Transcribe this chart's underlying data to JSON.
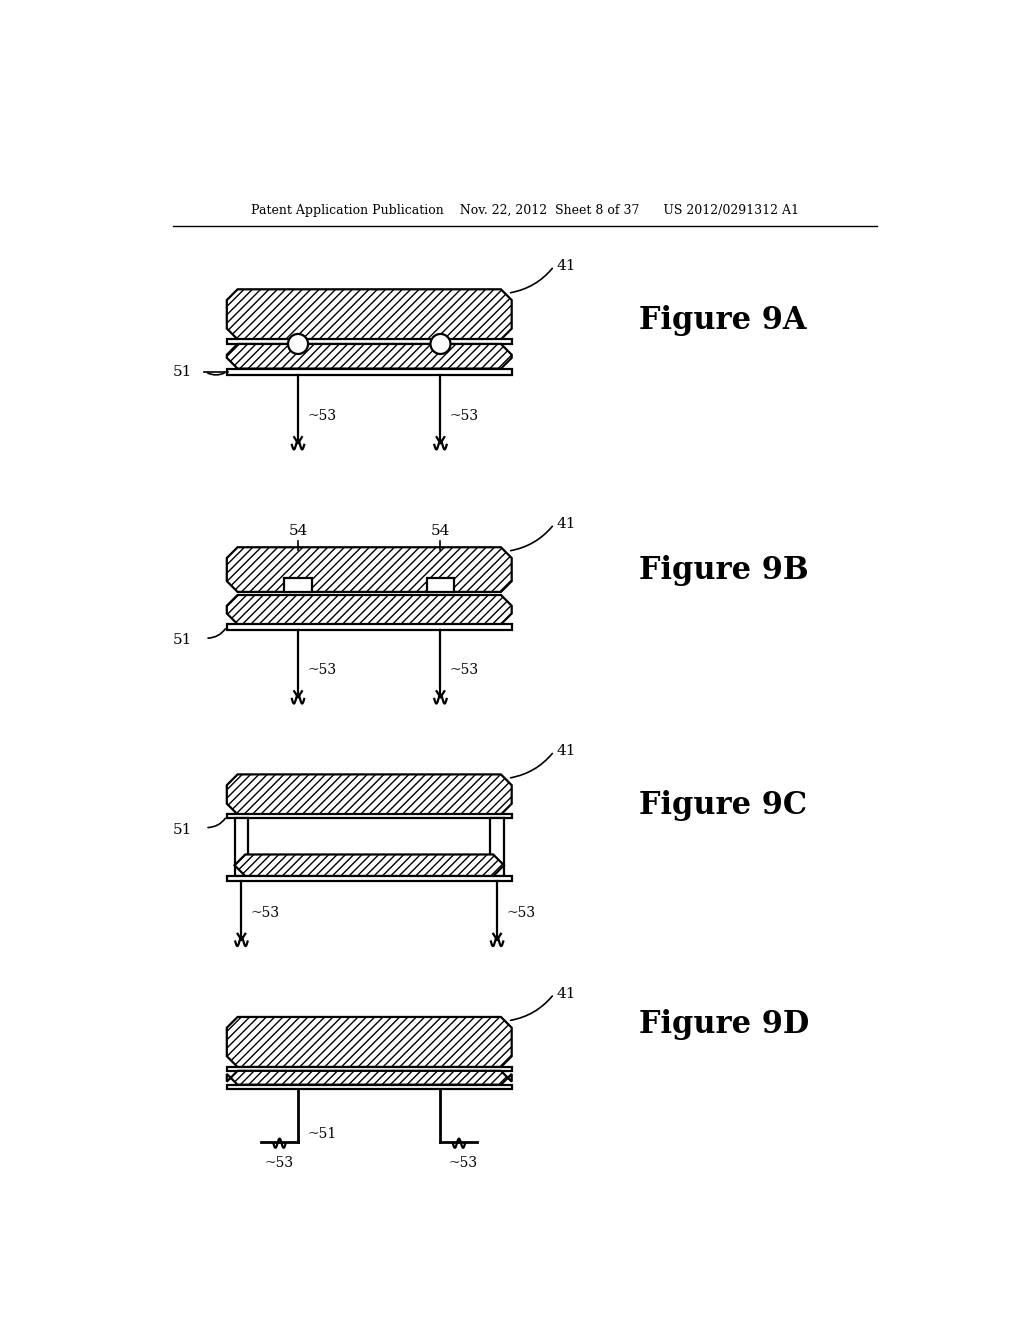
{
  "bg": "#ffffff",
  "lc": "#000000",
  "header": "Patent Application Publication    Nov. 22, 2012  Sheet 8 of 37      US 2012/0291312 A1",
  "fig_names": [
    "Figure 9A",
    "Figure 9B",
    "Figure 9C",
    "Figure 9D"
  ],
  "hatch": "////",
  "lw": 1.6
}
